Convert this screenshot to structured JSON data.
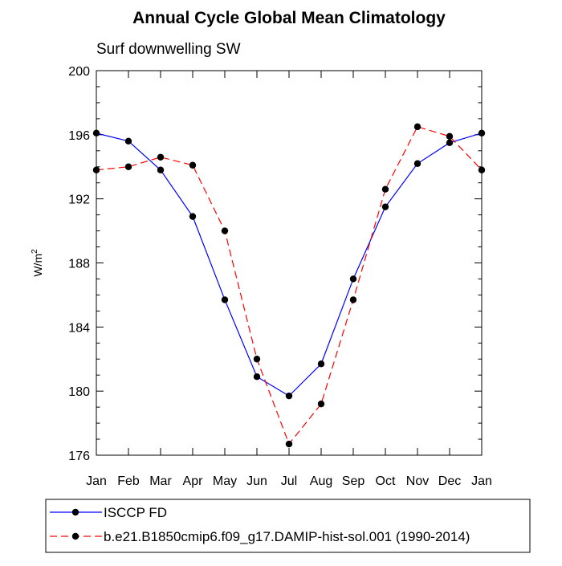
{
  "chart_data": {
    "type": "line",
    "title": "Annual Cycle Global Mean Climatology",
    "subtitle": "Surf downwelling SW",
    "ylabel": "W/m",
    "ylabel_superscript": "2",
    "categories": [
      "Jan",
      "Feb",
      "Mar",
      "Apr",
      "May",
      "Jun",
      "Jul",
      "Aug",
      "Sep",
      "Oct",
      "Nov",
      "Dec",
      "Jan"
    ],
    "ylim": [
      176,
      200
    ],
    "yticks": [
      176,
      180,
      184,
      188,
      192,
      196,
      200
    ],
    "series": [
      {
        "name": "ISCCP FD",
        "color": "#0000ff",
        "style": "solid",
        "marker": "filled-circle",
        "values": [
          196.1,
          195.6,
          193.8,
          190.9,
          185.7,
          180.9,
          179.7,
          181.7,
          187.0,
          191.5,
          194.2,
          195.5,
          196.1
        ]
      },
      {
        "name": "b.e21.B1850cmip6.f09_g17.DAMIP-hist-sol.001 (1990-2014)",
        "color": "#ff0000",
        "style": "dashed",
        "marker": "filled-circle",
        "values": [
          193.8,
          194.0,
          194.6,
          194.1,
          190.0,
          182.0,
          176.7,
          179.2,
          185.7,
          192.6,
          196.5,
          195.9,
          193.8
        ]
      }
    ],
    "grid": false,
    "legend_position": "bottom"
  }
}
